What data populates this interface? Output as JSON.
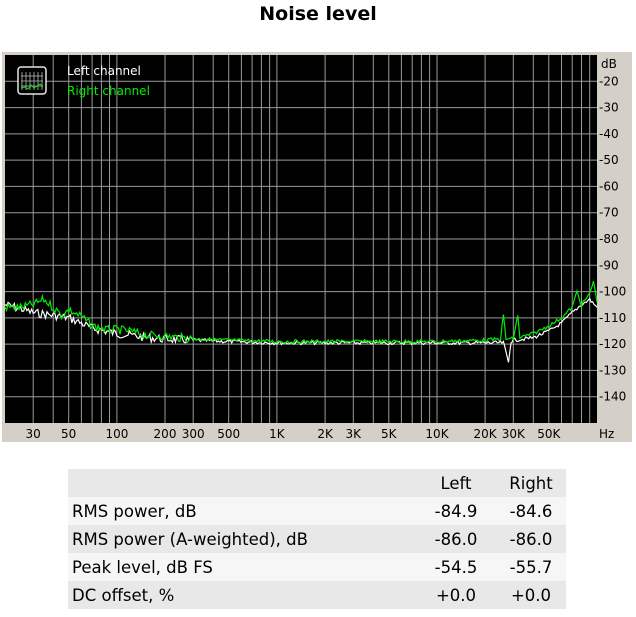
{
  "page_title": "Noise level",
  "chart_data": {
    "type": "line",
    "title": "Noise level",
    "x_scale": "log",
    "x_unit": "Hz",
    "y_unit": "dB",
    "xlim": [
      20,
      100000
    ],
    "ylim": [
      -150,
      -10
    ],
    "grid": true,
    "legend_position": "top-left",
    "x_ticks": [
      {
        "v": 30,
        "label": "30"
      },
      {
        "v": 50,
        "label": "50"
      },
      {
        "v": 100,
        "label": "100"
      },
      {
        "v": 200,
        "label": "200"
      },
      {
        "v": 300,
        "label": "300"
      },
      {
        "v": 500,
        "label": "500"
      },
      {
        "v": 1000,
        "label": "1K"
      },
      {
        "v": 2000,
        "label": "2K"
      },
      {
        "v": 3000,
        "label": "3K"
      },
      {
        "v": 5000,
        "label": "5K"
      },
      {
        "v": 10000,
        "label": "10K"
      },
      {
        "v": 20000,
        "label": "20K"
      },
      {
        "v": 30000,
        "label": "30K"
      },
      {
        "v": 50000,
        "label": "50K"
      }
    ],
    "y_ticks": [
      {
        "v": -20,
        "label": "-20"
      },
      {
        "v": -30,
        "label": "-30"
      },
      {
        "v": -40,
        "label": "-40"
      },
      {
        "v": -50,
        "label": "-50"
      },
      {
        "v": -60,
        "label": "-60"
      },
      {
        "v": -70,
        "label": "-70"
      },
      {
        "v": -80,
        "label": "-80"
      },
      {
        "v": -90,
        "label": "-90"
      },
      {
        "v": -100,
        "label": "-100"
      },
      {
        "v": -110,
        "label": "-110"
      },
      {
        "v": -120,
        "label": "-120"
      },
      {
        "v": -130,
        "label": "-130"
      },
      {
        "v": -140,
        "label": "-140"
      }
    ],
    "series": [
      {
        "name": "Left channel",
        "color": "#ffffff",
        "points": [
          [
            20,
            -105
          ],
          [
            25,
            -106.5
          ],
          [
            30,
            -108
          ],
          [
            40,
            -109
          ],
          [
            50,
            -110
          ],
          [
            60,
            -112
          ],
          [
            70,
            -114
          ],
          [
            85,
            -115
          ],
          [
            100,
            -116
          ],
          [
            120,
            -116.5
          ],
          [
            150,
            -117.5
          ],
          [
            200,
            -118
          ],
          [
            300,
            -118.5
          ],
          [
            500,
            -119
          ],
          [
            1000,
            -119.5
          ],
          [
            2000,
            -119.5
          ],
          [
            5000,
            -119.5
          ],
          [
            10000,
            -119.5
          ],
          [
            20000,
            -119.5
          ],
          [
            26000,
            -119.5
          ],
          [
            28000,
            -127
          ],
          [
            29000,
            -119
          ],
          [
            30000,
            -118.5
          ],
          [
            35000,
            -118
          ],
          [
            40000,
            -117.5
          ],
          [
            50000,
            -115
          ],
          [
            60000,
            -112
          ],
          [
            70000,
            -108
          ],
          [
            80000,
            -105
          ],
          [
            90000,
            -103
          ],
          [
            100000,
            -106
          ]
        ]
      },
      {
        "name": "Right channel",
        "color": "#00ee00",
        "points": [
          [
            20,
            -106
          ],
          [
            25,
            -106
          ],
          [
            30,
            -105
          ],
          [
            35,
            -103
          ],
          [
            40,
            -106
          ],
          [
            45,
            -109
          ],
          [
            50,
            -107
          ],
          [
            60,
            -109.5
          ],
          [
            70,
            -113
          ],
          [
            85,
            -114.5
          ],
          [
            100,
            -114.5
          ],
          [
            120,
            -115
          ],
          [
            150,
            -116.5
          ],
          [
            200,
            -117
          ],
          [
            300,
            -118
          ],
          [
            500,
            -118.5
          ],
          [
            1000,
            -119
          ],
          [
            2000,
            -119
          ],
          [
            5000,
            -119
          ],
          [
            10000,
            -119
          ],
          [
            20000,
            -118.5
          ],
          [
            25000,
            -118
          ],
          [
            26000,
            -109
          ],
          [
            27000,
            -118
          ],
          [
            30000,
            -118
          ],
          [
            32000,
            -109
          ],
          [
            33000,
            -117.5
          ],
          [
            40000,
            -116
          ],
          [
            50000,
            -113
          ],
          [
            60000,
            -110
          ],
          [
            70000,
            -106
          ],
          [
            75000,
            -100
          ],
          [
            80000,
            -105
          ],
          [
            90000,
            -101
          ],
          [
            95000,
            -96
          ],
          [
            100000,
            -104
          ]
        ]
      }
    ]
  },
  "table": {
    "col_left": "Left",
    "col_right": "Right",
    "rows": [
      {
        "label": "RMS power, dB",
        "left": "-84.9",
        "right": "-84.6"
      },
      {
        "label": "RMS power (A-weighted), dB",
        "left": "-86.0",
        "right": "-86.0"
      },
      {
        "label": "Peak level, dB FS",
        "left": "-54.5",
        "right": "-55.7"
      },
      {
        "label": "DC offset, %",
        "left": "+0.0",
        "right": "+0.0"
      }
    ]
  }
}
